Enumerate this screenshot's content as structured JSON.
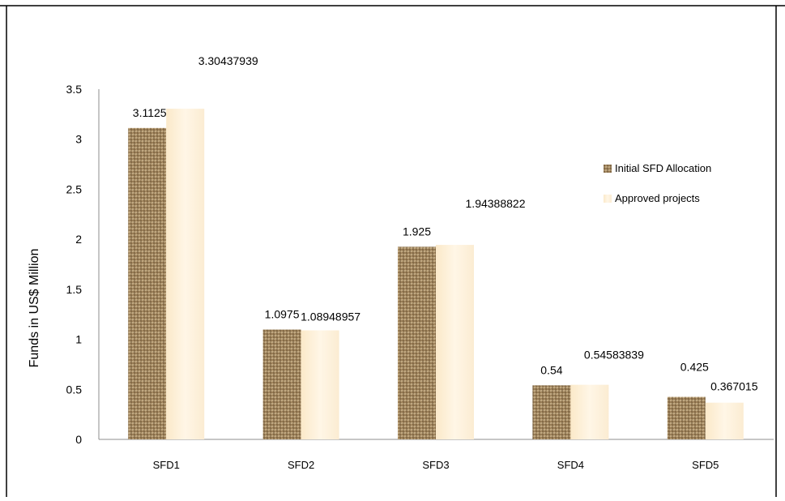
{
  "chart_data": {
    "type": "bar",
    "title": "",
    "xlabel": "",
    "ylabel": "Funds in US$ Million",
    "categories": [
      "SFD1",
      "SFD2",
      "SFD3",
      "SFD4",
      "SFD5"
    ],
    "ylim": [
      0,
      3.5
    ],
    "yticks": [
      "0",
      "0.5",
      "1",
      "1.5",
      "2",
      "2.5",
      "3",
      "3.5"
    ],
    "grid": false,
    "legend_position": "right",
    "series": [
      {
        "name": "Initial SFD Allocation",
        "values": [
          3.1125,
          1.0975,
          1.925,
          0.54,
          0.425
        ],
        "labels": [
          "3.1125",
          "1.0975",
          "1.925",
          "0.54",
          "0.425"
        ],
        "color": "#9a7e57"
      },
      {
        "name": "Approved projects",
        "values": [
          3.30437939,
          1.08948957,
          1.94388822,
          0.54583839,
          0.367015
        ],
        "labels": [
          "3.30437939",
          "1.08948957",
          "1.94388822",
          "0.54583839",
          "0.367015"
        ],
        "color": "#fcefd6"
      }
    ]
  }
}
